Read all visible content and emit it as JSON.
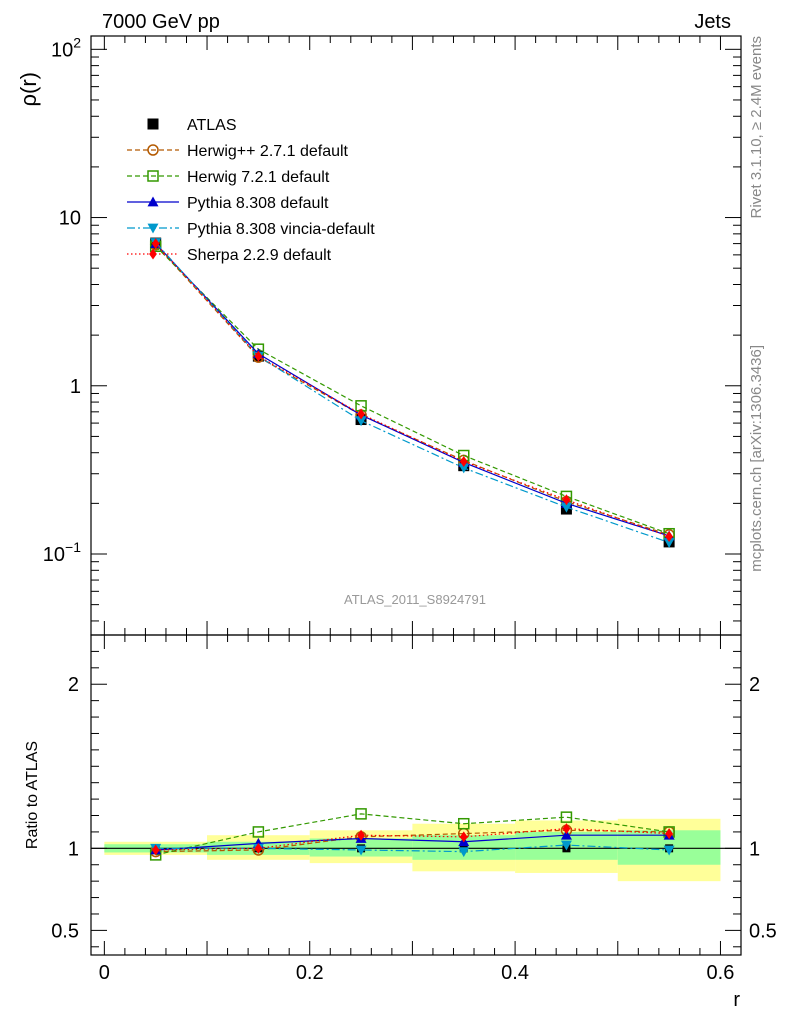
{
  "header": {
    "left": "7000 GeV pp",
    "right": "Jets"
  },
  "side_texts": {
    "rivet": "Rivet 3.1.10, ≥ 2.4M events",
    "source": "mcplots.cern.ch [arXiv:1306.3436]"
  },
  "watermark": "ATLAS_2011_S8924791",
  "chart_data": {
    "type": "line",
    "upper": {
      "ylabel": "ρ(r)",
      "yscale": "log",
      "ylim": [
        0.033,
        120
      ],
      "yticks": [
        {
          "value": 0.1,
          "base": "10",
          "exp": "−1"
        },
        {
          "value": 1,
          "label": "1"
        },
        {
          "value": 10,
          "label": "10"
        },
        {
          "value": 100,
          "base": "10",
          "exp": "2"
        }
      ]
    },
    "lower": {
      "ylabel": "Ratio to ATLAS",
      "ylim": [
        0.35,
        2.3
      ],
      "yticks": [
        {
          "value": 0.5,
          "label": "0.5"
        },
        {
          "value": 1,
          "label": "1"
        },
        {
          "value": 2,
          "label": "2"
        }
      ],
      "bands": [
        {
          "x0": 0.0,
          "x1": 0.1,
          "inner": [
            0.975,
            1.025
          ],
          "outer": [
            0.96,
            1.04
          ]
        },
        {
          "x0": 0.1,
          "x1": 0.2,
          "inner": [
            0.96,
            1.04
          ],
          "outer": [
            0.93,
            1.08
          ]
        },
        {
          "x0": 0.2,
          "x1": 0.3,
          "inner": [
            0.95,
            1.06
          ],
          "outer": [
            0.91,
            1.11
          ]
        },
        {
          "x0": 0.3,
          "x1": 0.4,
          "inner": [
            0.93,
            1.08
          ],
          "outer": [
            0.86,
            1.15
          ]
        },
        {
          "x0": 0.4,
          "x1": 0.5,
          "inner": [
            0.93,
            1.1
          ],
          "outer": [
            0.85,
            1.17
          ]
        },
        {
          "x0": 0.5,
          "x1": 0.6,
          "inner": [
            0.9,
            1.11
          ],
          "outer": [
            0.8,
            1.18
          ]
        }
      ]
    },
    "xlabel": "r",
    "xlim": [
      -0.013,
      0.62
    ],
    "xticks": [
      {
        "value": 0,
        "label": "0"
      },
      {
        "value": 0.2,
        "label": "0.2"
      },
      {
        "value": 0.4,
        "label": "0.4"
      },
      {
        "value": 0.6,
        "label": "0.6"
      }
    ],
    "x": [
      0.05,
      0.15,
      0.25,
      0.35,
      0.45,
      0.55
    ],
    "series": [
      {
        "name": "ATLAS",
        "color": "#000000",
        "marker": "filled-square",
        "line": "none",
        "data": true,
        "values": [
          7.05,
          1.5,
          0.63,
          0.335,
          0.185,
          0.118
        ],
        "ratio": [
          1,
          1,
          1,
          1,
          1,
          1
        ]
      },
      {
        "name": "Herwig++ 2.7.1 default",
        "color": "#b35900",
        "marker": "open-circle",
        "line": "dashed",
        "values": [
          6.9,
          1.48,
          0.67,
          0.36,
          0.205,
          0.13
        ],
        "ratio": [
          0.98,
          0.99,
          1.07,
          1.09,
          1.11,
          1.1
        ]
      },
      {
        "name": "Herwig 7.2.1 default",
        "color": "#339900",
        "marker": "open-square",
        "line": "dashed",
        "values": [
          6.75,
          1.65,
          0.76,
          0.385,
          0.22,
          0.132
        ],
        "ratio": [
          0.96,
          1.1,
          1.21,
          1.15,
          1.19,
          1.1
        ]
      },
      {
        "name": "Pythia 8.308 default",
        "color": "#0000cc",
        "marker": "filled-triangle-up",
        "line": "solid",
        "values": [
          7.0,
          1.55,
          0.67,
          0.35,
          0.2,
          0.128
        ],
        "ratio": [
          0.99,
          1.03,
          1.06,
          1.04,
          1.08,
          1.08
        ]
      },
      {
        "name": "Pythia 8.308 vincia-default",
        "color": "#0099cc",
        "marker": "filled-triangle-down",
        "line": "dashdot",
        "values": [
          7.1,
          1.5,
          0.62,
          0.325,
          0.19,
          0.117
        ],
        "ratio": [
          1.0,
          1.0,
          0.99,
          0.98,
          1.02,
          0.99
        ]
      },
      {
        "name": "Sherpa 2.2.9 default",
        "color": "#ff0000",
        "marker": "filled-diamond",
        "line": "dotted",
        "values": [
          7.0,
          1.5,
          0.68,
          0.355,
          0.21,
          0.127
        ],
        "ratio": [
          0.99,
          1.0,
          1.08,
          1.07,
          1.12,
          1.09
        ]
      }
    ]
  }
}
